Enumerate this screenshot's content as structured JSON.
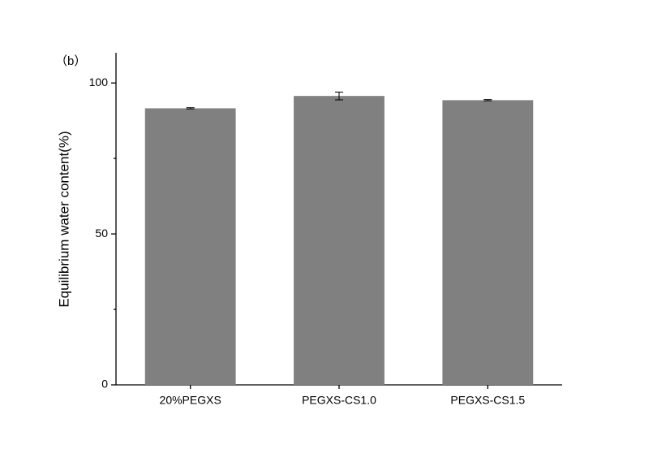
{
  "chart_data": {
    "type": "bar",
    "panel_label": "（b）",
    "ylabel": "Equilibrium water content(%)",
    "categories": [
      "20%PEGXS",
      "PEGXS-CS1.0",
      "PEGXS-CS1.5"
    ],
    "values": [
      91.6,
      95.7,
      94.3
    ],
    "errors": [
      0.2,
      1.3,
      0.2
    ],
    "color": "#808080",
    "ylim": [
      0,
      110
    ],
    "yticks": [
      0,
      50,
      100
    ],
    "yminor_ticks": [
      25,
      75
    ]
  }
}
